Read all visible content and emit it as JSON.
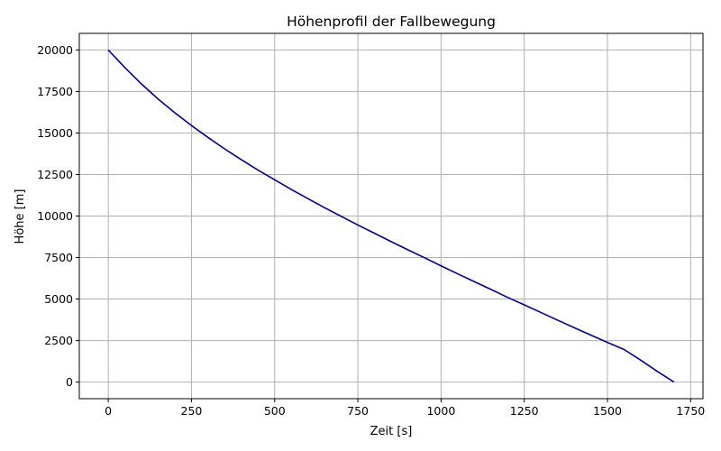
{
  "chart_data": {
    "type": "line",
    "title": "Höhenprofil der Fallbewegung",
    "xlabel": "Zeit [s]",
    "ylabel": "Höhe [m]",
    "xlim": [
      -87,
      1787
    ],
    "ylim": [
      -1000,
      21000
    ],
    "xticks": [
      0,
      250,
      500,
      750,
      1000,
      1250,
      1500,
      1750
    ],
    "xtick_labels": [
      "0",
      "250",
      "500",
      "750",
      "1000",
      "1250",
      "1500",
      "1750"
    ],
    "yticks": [
      0,
      2500,
      5000,
      7500,
      10000,
      12500,
      15000,
      17500,
      20000
    ],
    "ytick_labels": [
      "0",
      "2500",
      "5000",
      "7500",
      "10000",
      "12500",
      "15000",
      "17500",
      "20000"
    ],
    "grid": true,
    "series": [
      {
        "color": "#00008b",
        "x": [
          0,
          50,
          100,
          150,
          200,
          250,
          300,
          350,
          400,
          450,
          500,
          550,
          600,
          650,
          700,
          750,
          800,
          850,
          900,
          950,
          1000,
          1050,
          1100,
          1150,
          1200,
          1250,
          1300,
          1350,
          1400,
          1450,
          1500,
          1550,
          1600,
          1650,
          1700
        ],
        "y": [
          20000,
          18940,
          17950,
          17040,
          16220,
          15450,
          14730,
          14040,
          13390,
          12770,
          12180,
          11600,
          11050,
          10500,
          9980,
          9460,
          8960,
          8460,
          7970,
          7490,
          7000,
          6520,
          6050,
          5580,
          5100,
          4650,
          4190,
          3730,
          3280,
          2830,
          2390,
          1960,
          1320,
          640,
          0
        ]
      }
    ]
  }
}
